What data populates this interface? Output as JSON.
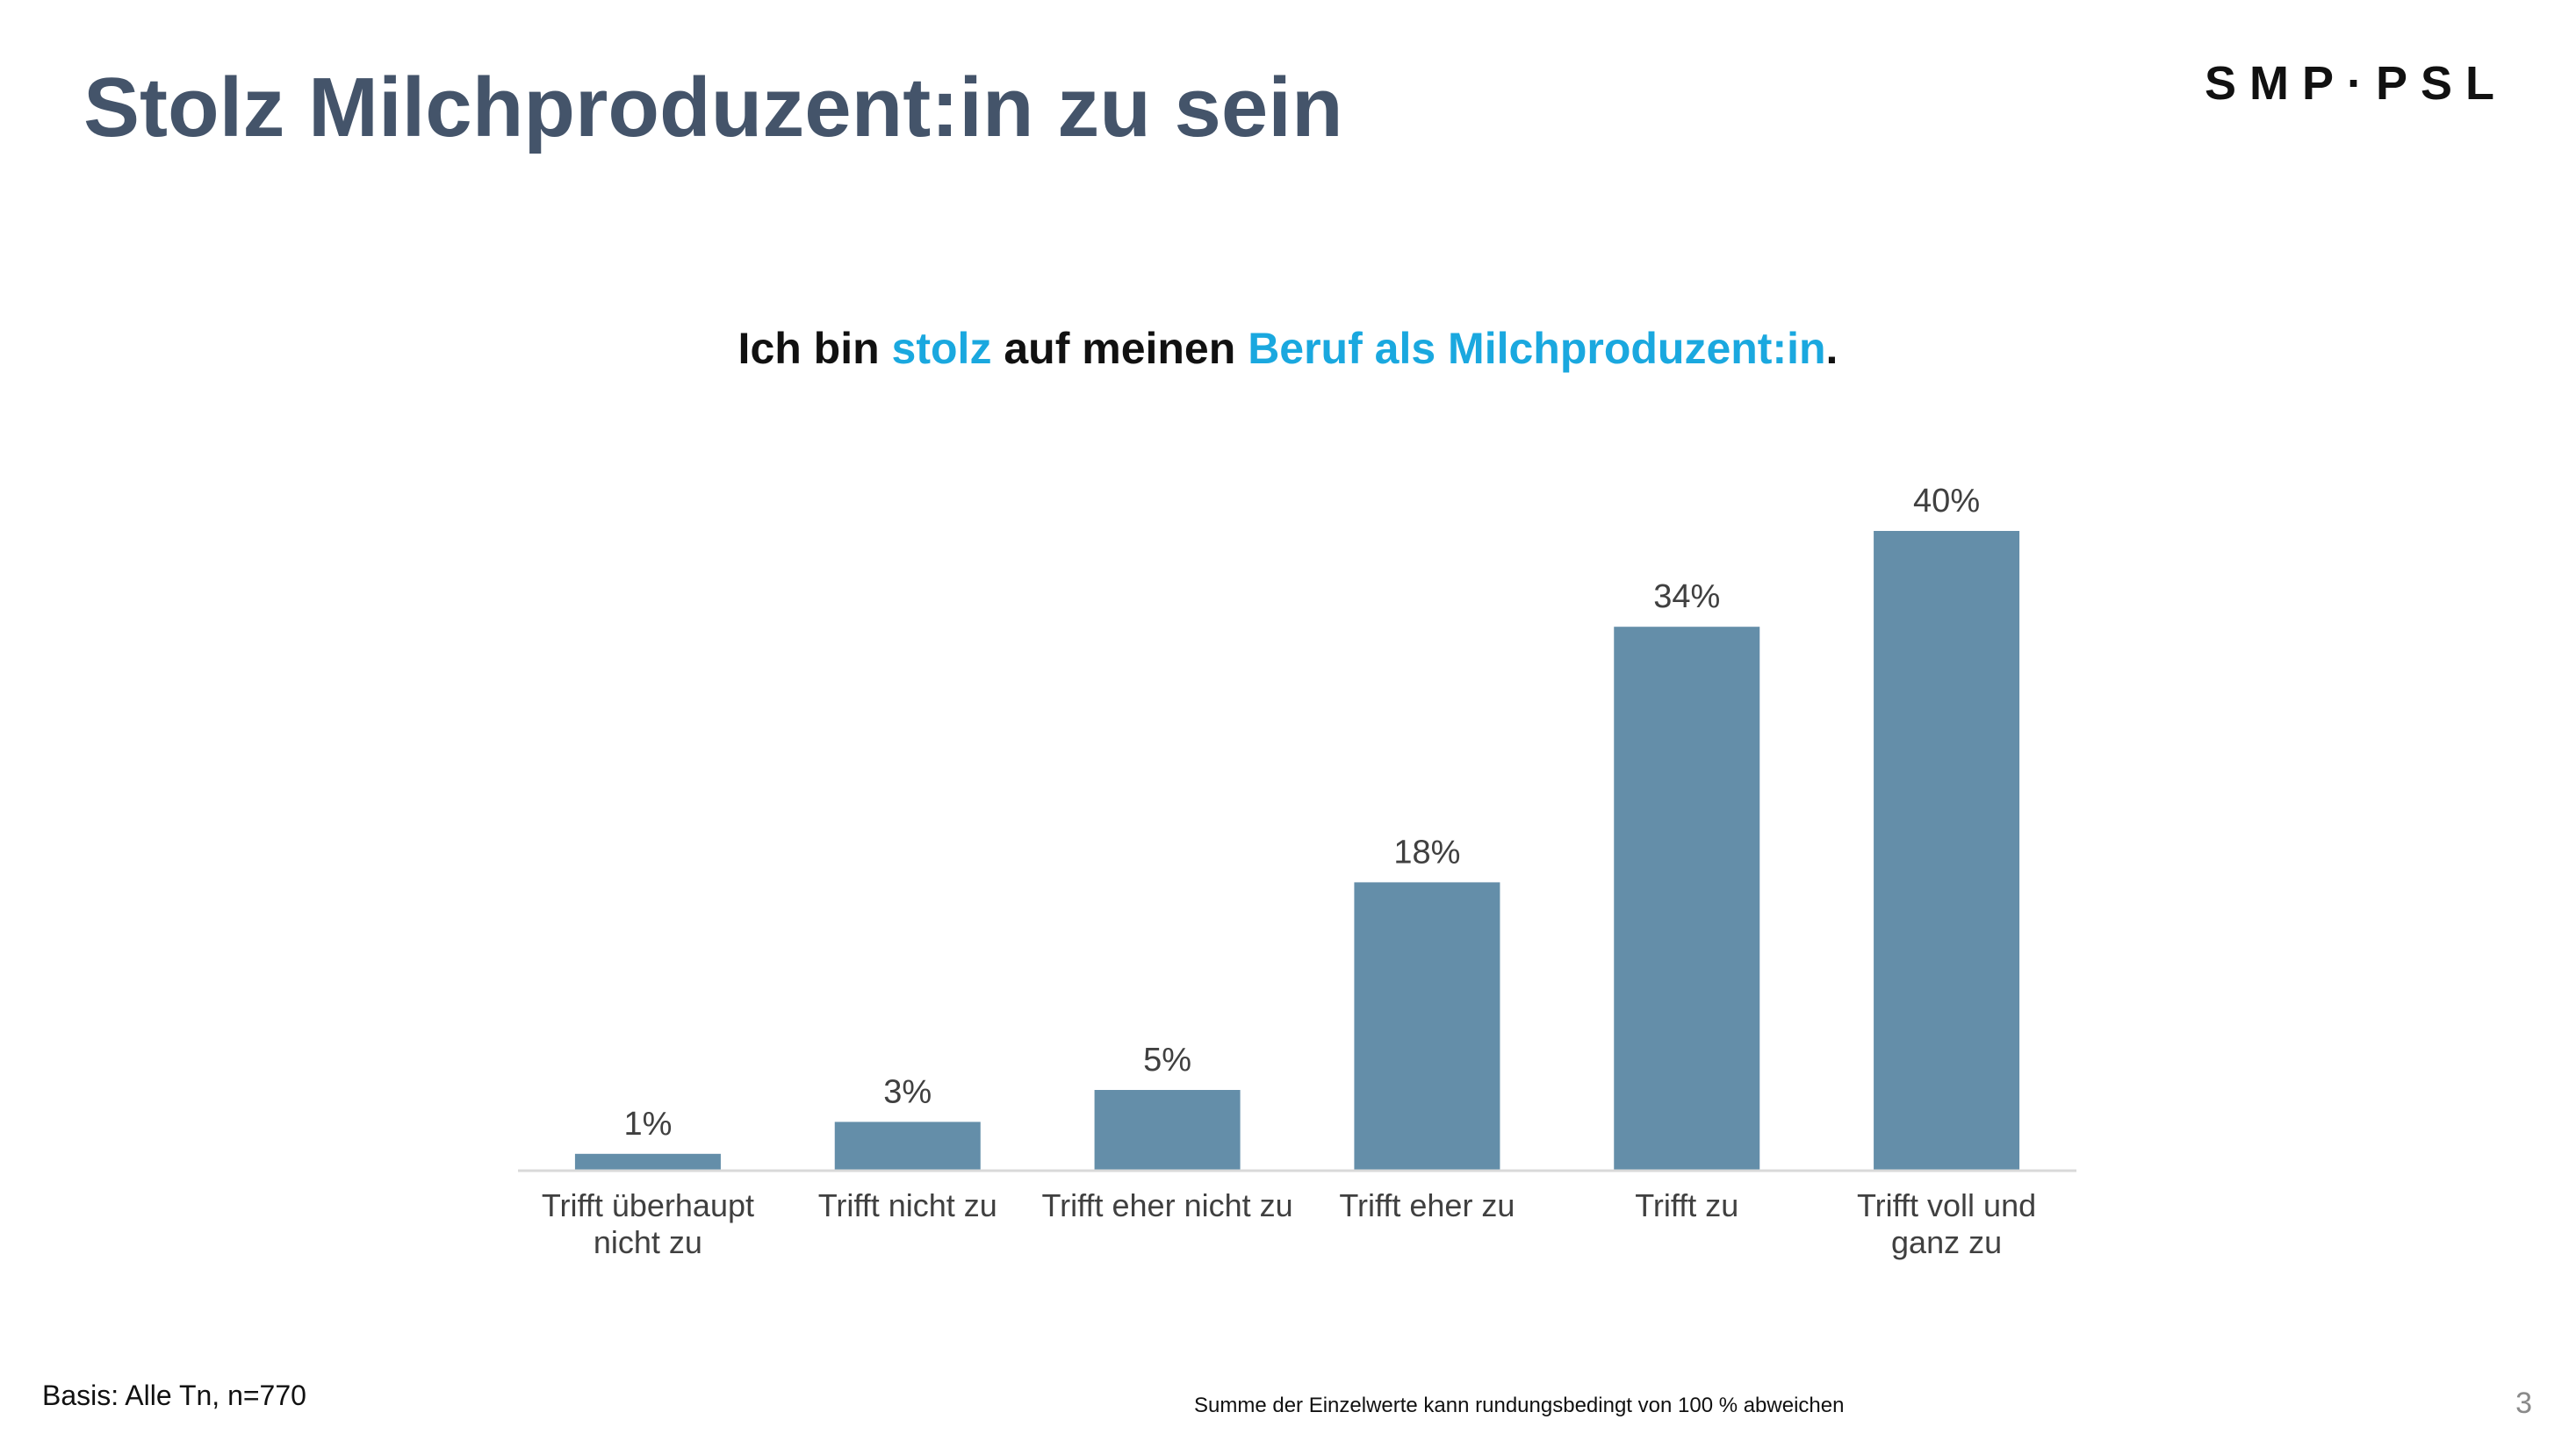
{
  "slide": {
    "title": "Stolz Milchproduzent:in zu sein",
    "logo": "SMP·PSL",
    "subtitle_parts": [
      "Ich bin ",
      "stolz",
      " auf meinen ",
      "Beruf als Milchproduzent:in",
      "."
    ],
    "basis": "Basis: Alle Tn, n=770",
    "note": "Summe der Einzelwerte kann rundungsbedingt von 100 % abweichen",
    "page_number": "3"
  },
  "colors": {
    "bar": "#648ea9",
    "highlight": "#1aa8df",
    "title": "#44546a",
    "axis": "#d9d9d9",
    "label": "#404040"
  },
  "chart_data": {
    "type": "bar",
    "title": "Ich bin stolz auf meinen Beruf als Milchproduzent:in.",
    "categories": [
      [
        "Trifft überhaupt",
        "nicht zu"
      ],
      [
        "Trifft nicht zu"
      ],
      [
        "Trifft eher nicht zu"
      ],
      [
        "Trifft eher zu"
      ],
      [
        "Trifft zu"
      ],
      [
        "Trifft voll und",
        "ganz zu"
      ]
    ],
    "values": [
      1,
      3,
      5,
      18,
      34,
      40
    ],
    "value_labels": [
      "1%",
      "3%",
      "5%",
      "18%",
      "34%",
      "40%"
    ],
    "unit": "%",
    "ylim": [
      0,
      40
    ],
    "grid": false,
    "legend": "none"
  }
}
